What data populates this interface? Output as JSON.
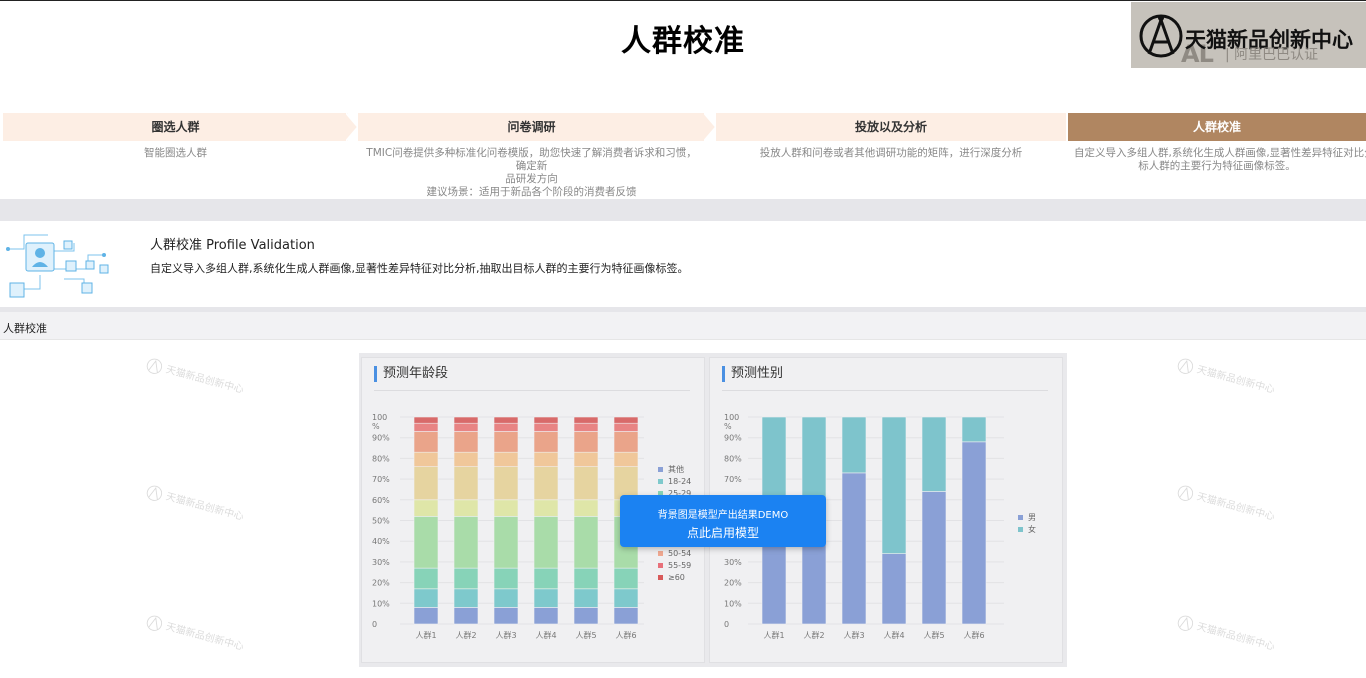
{
  "page": {
    "title": "人群校准"
  },
  "logo": {
    "main": "天猫新品创新中心",
    "al": "AL",
    "sub": "| 阿里巴巴认证"
  },
  "steps": [
    {
      "title": "圈选人群",
      "desc": [
        "智能圈选人群"
      ]
    },
    {
      "title": "问卷调研",
      "desc": [
        "TMIC问卷提供多种标准化问卷模版，助您快速了解消费者诉求和习惯，确定新",
        "品研发方向",
        "建议场景：适用于新品各个阶段的消费者反馈"
      ]
    },
    {
      "title": "投放以及分析",
      "desc": [
        "投放人群和问卷或者其他调研功能的矩阵，进行深度分析"
      ]
    },
    {
      "title": "人群校准",
      "desc": [
        "自定义导入多组人群,系统化生成人群画像,显著性差异特征对比分",
        "标人群的主要行为特征画像标签。"
      ],
      "active": true
    }
  ],
  "intro": {
    "title": "人群校准 Profile Validation",
    "desc": "自定义导入多组人群,系统化生成人群画像,显著性差异特征对比分析,抽取出目标人群的主要行为特征画像标签。",
    "illustration_icon": "user-network-icon"
  },
  "section": {
    "label": "人群校准"
  },
  "watermark": {
    "text": "天猫新品创新中心"
  },
  "demo": {
    "line1": "背景图是模型产出结果DEMO",
    "line2": "点此启用模型"
  },
  "chart_data": [
    {
      "type": "bar",
      "stacked": true,
      "title": "预测年龄段",
      "categories": [
        "人群1",
        "人群2",
        "人群3",
        "人群4",
        "人群5",
        "人群6"
      ],
      "yticks": [
        "0",
        "10%",
        "20%",
        "30%",
        "40%",
        "50%",
        "60%",
        "70%",
        "80%",
        "90%",
        "100"
      ],
      "yunit": "%",
      "ylim": [
        0,
        100
      ],
      "legend": [
        "其他",
        "18-24",
        "25-29",
        "50-54",
        "55-59",
        "≥60"
      ],
      "legend_colors": [
        "#8aa0d6",
        "#7ec9cc",
        "#87d3b8",
        "#f0a890",
        "#e8707a",
        "#d85a5a"
      ],
      "segment_colors": [
        "#8aa0d6",
        "#7ec9cc",
        "#87d3b8",
        "#a9dca9",
        "#dfe6a8",
        "#e6d4a0",
        "#f0c79a",
        "#eaa48a",
        "#e88484",
        "#d86a6a"
      ],
      "series": [
        {
          "values": [
            8,
            8,
            8,
            8,
            8,
            8
          ]
        },
        {
          "values": [
            9,
            9,
            9,
            9,
            9,
            9
          ]
        },
        {
          "values": [
            10,
            10,
            10,
            10,
            10,
            10
          ]
        },
        {
          "values": [
            25,
            25,
            25,
            25,
            25,
            25
          ]
        },
        {
          "values": [
            8,
            8,
            8,
            8,
            8,
            8
          ]
        },
        {
          "values": [
            16,
            16,
            16,
            16,
            16,
            16
          ]
        },
        {
          "values": [
            7,
            7,
            7,
            7,
            7,
            7
          ]
        },
        {
          "values": [
            10,
            10,
            10,
            10,
            10,
            10
          ]
        },
        {
          "values": [
            4,
            4,
            4,
            4,
            4,
            4
          ]
        },
        {
          "values": [
            3,
            3,
            3,
            3,
            3,
            3
          ]
        }
      ],
      "legend_position": "right"
    },
    {
      "type": "bar",
      "stacked": true,
      "title": "预测性别",
      "categories": [
        "人群1",
        "人群2",
        "人群3",
        "人群4",
        "人群5",
        "人群6"
      ],
      "yticks": [
        "0",
        "10%",
        "20%",
        "30%",
        "40%",
        "50%",
        "60%",
        "70%",
        "80%",
        "90%",
        "100"
      ],
      "yunit": "%",
      "ylim": [
        0,
        100
      ],
      "series": [
        {
          "name": "男",
          "color": "#8aa0d6",
          "values": [
            45,
            45,
            73,
            34,
            64,
            88
          ]
        },
        {
          "name": "女",
          "color": "#7ec4cc",
          "values": [
            55,
            55,
            27,
            66,
            36,
            12
          ]
        }
      ],
      "legend_position": "right"
    }
  ]
}
